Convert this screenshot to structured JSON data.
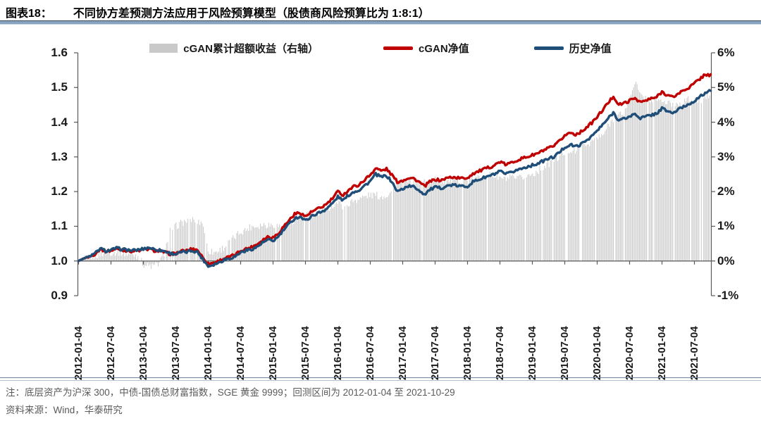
{
  "header": {
    "label": "图表18：",
    "title": "不同协方差预测方法应用于风险预算模型（股债商风险预算比为 1:8:1）"
  },
  "legend": [
    {
      "label": "cGAN累计超额收益（右轴）",
      "swatch": "bar",
      "color": "#C9C9C9"
    },
    {
      "label": "cGAN净值",
      "swatch": "line",
      "color": "#C00000"
    },
    {
      "label": "历史净值",
      "swatch": "line",
      "color": "#1F4E79"
    }
  ],
  "colors": {
    "bar": "#C9C9C9",
    "cgan_line": "#C00000",
    "hist_line": "#1F4E79",
    "axis": "#595959"
  },
  "chart_data": {
    "type": "line+bar",
    "title": "不同协方差预测方法应用于风险预算模型（股债商风险预算比为 1:8:1）",
    "left_axis": {
      "min": 0.9,
      "max": 1.6,
      "tick_step": 0.1,
      "tick_labels": [
        "1.6",
        "1.5",
        "1.4",
        "1.3",
        "1.2",
        "1.1",
        "1.0",
        "0.9"
      ]
    },
    "right_axis": {
      "min": -1,
      "max": 6,
      "tick_step": 1,
      "tick_labels": [
        "6%",
        "5%",
        "4%",
        "3%",
        "2%",
        "1%",
        "0%",
        "-1%"
      ]
    },
    "x_tick_labels": [
      "2012-01-04",
      "2012-07-04",
      "2013-01-04",
      "2013-07-04",
      "2014-01-04",
      "2014-07-04",
      "2015-01-04",
      "2015-07-04",
      "2016-01-04",
      "2016-07-04",
      "2017-01-04",
      "2017-07-04",
      "2018-01-04",
      "2018-07-04",
      "2019-01-04",
      "2019-07-04",
      "2020-01-04",
      "2020-07-04",
      "2021-01-04",
      "2021-07-04"
    ],
    "x_range": [
      "2012-01-04",
      "2021-10-29"
    ],
    "x_monthly": [
      "2012-01",
      "2012-02",
      "2012-03",
      "2012-04",
      "2012-05",
      "2012-06",
      "2012-07",
      "2012-08",
      "2012-09",
      "2012-10",
      "2012-11",
      "2012-12",
      "2013-01",
      "2013-02",
      "2013-03",
      "2013-04",
      "2013-05",
      "2013-06",
      "2013-07",
      "2013-08",
      "2013-09",
      "2013-10",
      "2013-11",
      "2013-12",
      "2014-01",
      "2014-02",
      "2014-03",
      "2014-04",
      "2014-05",
      "2014-06",
      "2014-07",
      "2014-08",
      "2014-09",
      "2014-10",
      "2014-11",
      "2014-12",
      "2015-01",
      "2015-02",
      "2015-03",
      "2015-04",
      "2015-05",
      "2015-06",
      "2015-07",
      "2015-08",
      "2015-09",
      "2015-10",
      "2015-11",
      "2015-12",
      "2016-01",
      "2016-02",
      "2016-03",
      "2016-04",
      "2016-05",
      "2016-06",
      "2016-07",
      "2016-08",
      "2016-09",
      "2016-10",
      "2016-11",
      "2016-12",
      "2017-01",
      "2017-02",
      "2017-03",
      "2017-04",
      "2017-05",
      "2017-06",
      "2017-07",
      "2017-08",
      "2017-09",
      "2017-10",
      "2017-11",
      "2017-12",
      "2018-01",
      "2018-02",
      "2018-03",
      "2018-04",
      "2018-05",
      "2018-06",
      "2018-07",
      "2018-08",
      "2018-09",
      "2018-10",
      "2018-11",
      "2018-12",
      "2019-01",
      "2019-02",
      "2019-03",
      "2019-04",
      "2019-05",
      "2019-06",
      "2019-07",
      "2019-08",
      "2019-09",
      "2019-10",
      "2019-11",
      "2019-12",
      "2020-01",
      "2020-02",
      "2020-03",
      "2020-04",
      "2020-05",
      "2020-06",
      "2020-07",
      "2020-08",
      "2020-09",
      "2020-10",
      "2020-11",
      "2020-12",
      "2021-01",
      "2021-02",
      "2021-03",
      "2021-04",
      "2021-05",
      "2021-06",
      "2021-07",
      "2021-08",
      "2021-09",
      "2021-10"
    ],
    "series": [
      {
        "name": "cGAN净值",
        "type": "line",
        "axis": "left",
        "color": "#C00000",
        "values": [
          1.0,
          1.008,
          1.012,
          1.02,
          1.035,
          1.028,
          1.03,
          1.035,
          1.032,
          1.03,
          1.028,
          1.03,
          1.032,
          1.035,
          1.03,
          1.028,
          1.025,
          1.02,
          1.022,
          1.028,
          1.03,
          1.035,
          1.032,
          1.01,
          0.992,
          0.995,
          1.0,
          1.008,
          1.012,
          1.018,
          1.03,
          1.035,
          1.04,
          1.048,
          1.06,
          1.07,
          1.068,
          1.08,
          1.1,
          1.118,
          1.135,
          1.14,
          1.128,
          1.14,
          1.148,
          1.155,
          1.165,
          1.18,
          1.2,
          1.19,
          1.205,
          1.215,
          1.22,
          1.235,
          1.248,
          1.268,
          1.26,
          1.265,
          1.248,
          1.228,
          1.232,
          1.24,
          1.238,
          1.228,
          1.215,
          1.228,
          1.235,
          1.232,
          1.238,
          1.242,
          1.24,
          1.238,
          1.24,
          1.252,
          1.258,
          1.264,
          1.27,
          1.276,
          1.286,
          1.278,
          1.282,
          1.29,
          1.295,
          1.3,
          1.305,
          1.31,
          1.318,
          1.325,
          1.33,
          1.345,
          1.362,
          1.37,
          1.365,
          1.372,
          1.385,
          1.398,
          1.415,
          1.435,
          1.455,
          1.475,
          1.45,
          1.455,
          1.462,
          1.47,
          1.458,
          1.462,
          1.468,
          1.472,
          1.488,
          1.478,
          1.472,
          1.482,
          1.492,
          1.5,
          1.512,
          1.525,
          1.538,
          1.535
        ]
      },
      {
        "name": "历史净值",
        "type": "line",
        "axis": "left",
        "color": "#1F4E79",
        "values": [
          1.0,
          1.008,
          1.013,
          1.021,
          1.036,
          1.029,
          1.031,
          1.037,
          1.034,
          1.032,
          1.03,
          1.032,
          1.035,
          1.039,
          1.034,
          1.031,
          1.028,
          1.022,
          1.02,
          1.025,
          1.026,
          1.03,
          1.026,
          1.005,
          0.985,
          0.99,
          0.996,
          1.004,
          1.008,
          1.013,
          1.025,
          1.03,
          1.034,
          1.04,
          1.052,
          1.06,
          1.058,
          1.07,
          1.09,
          1.107,
          1.123,
          1.128,
          1.116,
          1.128,
          1.136,
          1.142,
          1.152,
          1.166,
          1.185,
          1.175,
          1.19,
          1.2,
          1.205,
          1.218,
          1.23,
          1.25,
          1.242,
          1.246,
          1.228,
          1.2,
          1.208,
          1.216,
          1.214,
          1.205,
          1.192,
          1.205,
          1.212,
          1.21,
          1.215,
          1.219,
          1.217,
          1.215,
          1.216,
          1.228,
          1.234,
          1.24,
          1.245,
          1.25,
          1.258,
          1.25,
          1.254,
          1.262,
          1.266,
          1.272,
          1.276,
          1.281,
          1.288,
          1.295,
          1.3,
          1.313,
          1.328,
          1.335,
          1.33,
          1.336,
          1.348,
          1.36,
          1.375,
          1.392,
          1.41,
          1.428,
          1.405,
          1.41,
          1.416,
          1.424,
          1.412,
          1.416,
          1.421,
          1.425,
          1.44,
          1.432,
          1.426,
          1.436,
          1.445,
          1.452,
          1.462,
          1.472,
          1.485,
          1.49
        ]
      },
      {
        "name": "cGAN累计超额收益（右轴）",
        "type": "bar",
        "axis": "right",
        "unit": "%",
        "color": "#C9C9C9",
        "values": [
          0.0,
          0.05,
          0.1,
          0.15,
          0.2,
          0.25,
          0.25,
          0.25,
          0.25,
          0.2,
          0.2,
          0.15,
          -0.1,
          -0.15,
          -0.15,
          -0.05,
          0.3,
          0.9,
          1.0,
          1.1,
          1.15,
          1.2,
          1.15,
          1.1,
          0.3,
          0.25,
          0.3,
          0.4,
          0.55,
          0.7,
          0.85,
          0.9,
          1.0,
          1.0,
          1.05,
          1.05,
          1.05,
          1.0,
          1.05,
          1.1,
          1.2,
          1.3,
          1.35,
          1.3,
          1.35,
          1.4,
          1.5,
          1.6,
          1.7,
          1.55,
          1.65,
          1.75,
          1.8,
          1.85,
          1.9,
          1.9,
          1.85,
          1.9,
          2.0,
          2.2,
          2.25,
          2.3,
          2.3,
          2.25,
          2.3,
          2.3,
          2.35,
          2.3,
          2.3,
          2.35,
          2.3,
          2.35,
          2.3,
          2.35,
          2.4,
          2.45,
          2.5,
          2.45,
          2.4,
          2.35,
          2.4,
          2.35,
          2.4,
          2.45,
          2.5,
          2.6,
          2.7,
          2.8,
          2.9,
          3.0,
          3.1,
          3.2,
          3.15,
          3.25,
          3.35,
          3.45,
          3.55,
          3.6,
          3.9,
          4.1,
          4.2,
          4.3,
          4.7,
          5.2,
          4.75,
          4.7,
          4.65,
          4.7,
          4.6,
          4.55,
          4.5,
          4.55,
          4.6,
          4.65,
          4.6,
          4.65,
          4.7,
          4.8
        ]
      }
    ],
    "grid": false,
    "legend_position": "top"
  },
  "footnote": {
    "note": "注：底层资产为沪深 300，中债-国债总财富指数，SGE 黄金 9999；回测区间为 2012-01-04 至 2021-10-29",
    "source": "资料来源：Wind，华泰研究"
  }
}
